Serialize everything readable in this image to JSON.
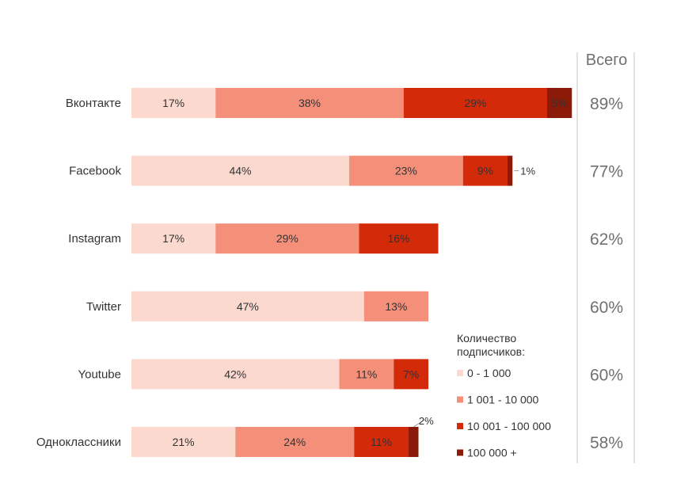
{
  "chart_data": {
    "type": "bar",
    "orientation": "horizontal",
    "stacked": true,
    "categories": [
      "Вконтакте",
      "Facebook",
      "Instagram",
      "Twitter",
      "Youtube",
      "Одноклассники"
    ],
    "series": [
      {
        "name": "0 - 1 000",
        "color": "#fbd9cf",
        "values": [
          17,
          44,
          17,
          47,
          42,
          21
        ]
      },
      {
        "name": "1 001 - 10 000",
        "color": "#f4907a",
        "values": [
          38,
          23,
          29,
          13,
          11,
          24
        ]
      },
      {
        "name": "10 001 - 100 000",
        "color": "#d32a0a",
        "values": [
          29,
          9,
          16,
          0,
          7,
          11
        ]
      },
      {
        "name": "100 000 +",
        "color": "#8b1b08",
        "values": [
          5,
          1,
          0,
          0,
          0,
          2
        ]
      }
    ],
    "data_labels": [
      [
        "17%",
        "38%",
        "29%",
        "5%"
      ],
      [
        "44%",
        "23%",
        "9%",
        "1%"
      ],
      [
        "17%",
        "29%",
        "16%",
        ""
      ],
      [
        "47%",
        "13%",
        "",
        ""
      ],
      [
        "42%",
        "11%",
        "7%",
        ""
      ],
      [
        "21%",
        "24%",
        "11%",
        "2%"
      ]
    ],
    "totals_header": "Всего",
    "totals": [
      "89%",
      "77%",
      "62%",
      "60%",
      "60%",
      "58%"
    ],
    "legend_title": [
      "Количество",
      "подписчиков:"
    ],
    "legend_position": "bottom-right",
    "grid": false
  }
}
